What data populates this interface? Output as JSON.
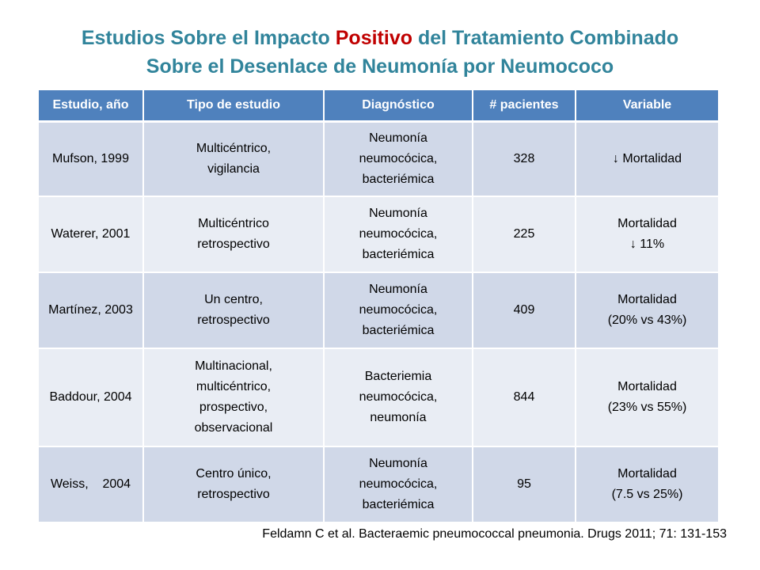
{
  "title": {
    "line1_before": "Estudios Sobre el Impacto ",
    "line1_accent": "Positivo",
    "line1_after": " del Tratamiento Combinado",
    "line2": "Sobre el Desenlace de Neumonía por Neumococo"
  },
  "colors": {
    "title": "#31849b",
    "accent": "#c00000",
    "header_bg": "#4f81bd",
    "row_odd": "#d0d8e8",
    "row_even": "#e9edf4"
  },
  "table": {
    "headers": [
      "Estudio, año",
      "Tipo de estudio",
      "Diagnóstico",
      "# pacientes",
      "Variable"
    ],
    "rows": [
      [
        "Mufson, 1999",
        "Multicéntrico,\nvigilancia",
        "Neumonía\nneumocócica,\nbacteriémica",
        "328",
        "↓ Mortalidad"
      ],
      [
        "Waterer, 2001",
        "Multicéntrico\nretrospectivo",
        "Neumonía\nneumocócica,\nbacteriémica",
        "225",
        "Mortalidad\n↓ 11%"
      ],
      [
        "Martínez, 2003",
        "Un centro,\nretrospectivo",
        "Neumonía\nneumocócica,\nbacteriémica",
        "409",
        "Mortalidad\n(20% vs 43%)"
      ],
      [
        "Baddour, 2004",
        "Multinacional,\nmulticéntrico,\nprospectivo,\nobservacional",
        "Bacteriemia\nneumocócica,\nneumonía",
        "844",
        "Mortalidad\n(23%  vs 55%)"
      ],
      [
        "Weiss,    2004",
        "Centro único,\nretrospectivo",
        "Neumonía\nneumocócica,\nbacteriémica",
        "95",
        "Mortalidad\n(7.5 vs 25%)"
      ]
    ]
  },
  "citation": "Feldamn C et al. Bacteraemic pneumococcal pneumonia. Drugs 2011; 71: 131-153"
}
